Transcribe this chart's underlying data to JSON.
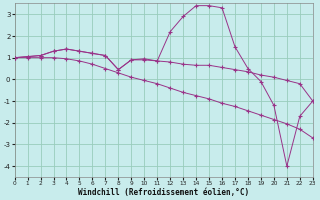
{
  "bg_color": "#c8ecec",
  "grid_color": "#99ccbb",
  "line_color": "#993388",
  "xlim": [
    0,
    23
  ],
  "ylim": [
    -4.5,
    3.5
  ],
  "yticks": [
    -4,
    -3,
    -2,
    -1,
    0,
    1,
    2,
    3
  ],
  "xticks": [
    0,
    1,
    2,
    3,
    4,
    5,
    6,
    7,
    8,
    9,
    10,
    11,
    12,
    13,
    14,
    15,
    16,
    17,
    18,
    19,
    20,
    21,
    22,
    23
  ],
  "xlabel": "Windchill (Refroidissement éolien,°C)",
  "line_jagged_x": [
    0,
    1,
    2,
    3,
    4,
    5,
    6,
    7,
    8,
    9,
    10,
    11,
    12,
    13,
    14,
    15,
    16,
    17,
    18,
    19,
    20,
    21,
    22,
    23
  ],
  "line_jagged_y": [
    1.0,
    1.05,
    1.1,
    1.3,
    1.4,
    1.3,
    1.2,
    1.1,
    0.45,
    0.9,
    0.95,
    0.85,
    0.8,
    0.7,
    0.65,
    0.65,
    0.55,
    0.45,
    0.35,
    0.2,
    0.1,
    -0.05,
    -0.2,
    -1.0
  ],
  "line_mid_x": [
    0,
    1,
    2,
    3,
    4,
    5,
    6,
    7,
    8,
    9,
    10,
    11,
    12,
    13,
    14,
    15,
    16,
    17,
    18,
    19,
    20,
    21,
    22,
    23
  ],
  "line_mid_y": [
    1.0,
    1.0,
    1.0,
    1.0,
    0.95,
    0.85,
    0.7,
    0.5,
    0.3,
    0.1,
    -0.05,
    -0.2,
    -0.4,
    -0.6,
    -0.75,
    -0.9,
    -1.1,
    -1.25,
    -1.45,
    -1.65,
    -1.85,
    -2.05,
    -2.3,
    -2.7
  ],
  "line_peak_x": [
    0,
    1,
    2,
    3,
    4,
    5,
    6,
    7,
    8,
    9,
    10,
    11,
    12,
    13,
    14,
    15,
    16,
    17,
    18,
    19,
    20,
    21,
    22,
    23
  ],
  "line_peak_y": [
    1.0,
    1.05,
    1.1,
    1.3,
    1.4,
    1.3,
    1.2,
    1.1,
    0.45,
    0.9,
    0.9,
    0.85,
    2.2,
    2.9,
    3.4,
    3.4,
    3.3,
    1.5,
    0.5,
    -0.1,
    -1.2,
    -4.0,
    -1.7,
    -1.0
  ]
}
